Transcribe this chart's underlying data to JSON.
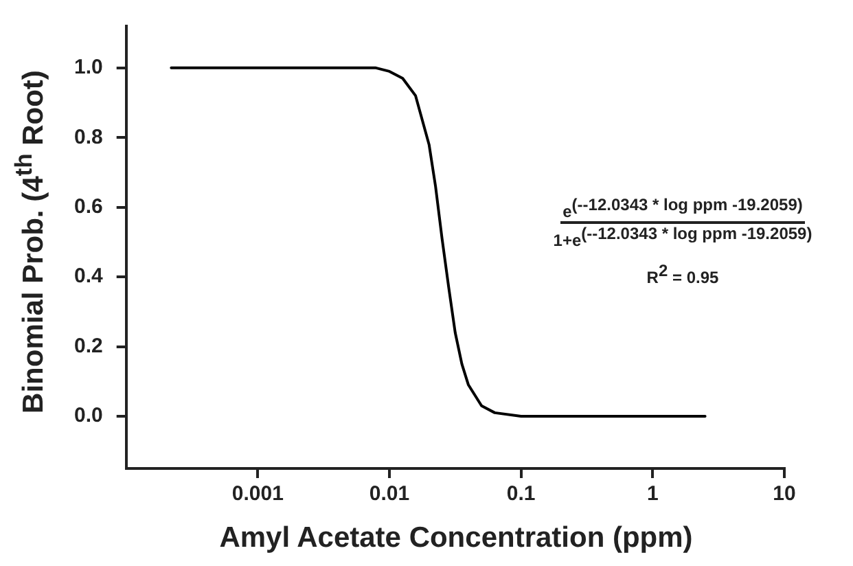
{
  "chart_data": {
    "type": "line",
    "xlabel": "Amyl Acetate Concentration (ppm)",
    "ylabel": "Binomial Prob. (4$^{th}$ Root)",
    "x": [
      0.00022,
      0.001,
      0.0032,
      0.0063,
      0.0079,
      0.01,
      0.0126,
      0.0158,
      0.02,
      0.0224,
      0.0251,
      0.0282,
      0.0316,
      0.0355,
      0.0398,
      0.0501,
      0.0631,
      0.1,
      0.3,
      1,
      2.5
    ],
    "series": [
      {
        "color": "#000000",
        "values": [
          1.0,
          1.0,
          1.0,
          1.0,
          1.0,
          0.99,
          0.97,
          0.92,
          0.78,
          0.66,
          0.51,
          0.37,
          0.24,
          0.15,
          0.09,
          0.03,
          0.01,
          0.0,
          0.0,
          0.0,
          0.0
        ]
      }
    ],
    "log": "x",
    "xlim": [
      0.0001,
      10
    ],
    "xticks": [
      0.001,
      0.01,
      0.1,
      1,
      10
    ],
    "ylim": [
      -0.15,
      1.12
    ],
    "yticks": [
      {
        "value": 0,
        "label": "0.0"
      },
      {
        "value": 0.2,
        "label": "0.2"
      },
      {
        "value": 0.4,
        "label": "0.4"
      },
      {
        "value": 0.6,
        "label": "0.6"
      },
      {
        "value": 0.8,
        "label": "0.8"
      },
      {
        "value": 1,
        "label": "1.0"
      }
    ],
    "grid": false,
    "legend": false,
    "marker": "none",
    "line_style": "solid",
    "annotations": [
      "e$^{(--12.0343 * log ppm -19.2059)}$",
      "1+e$^{(--12.0343 * log ppm -19.2059)}$",
      "R$^{2}$ = 0.95"
    ]
  }
}
